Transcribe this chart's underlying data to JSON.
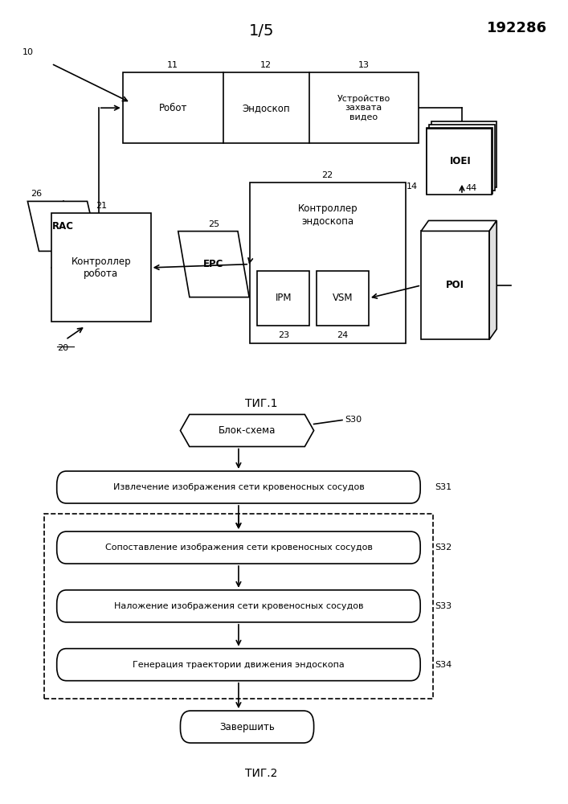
{
  "patent_number": "192286",
  "fig1_title": "1/5",
  "fig1_caption": "ΤИГ.1",
  "fig2_caption": "ΤИГ.2",
  "background_color": "#ffffff",
  "line_color": "#000000",
  "robot_label": "Робот",
  "endoscope_label": "Эндоскоп",
  "video_label": "Устройство\nзахвата\nвидео",
  "rac_label": "RAC",
  "robot_ctrl_label": "Контроллер\nробота",
  "epc_label": "EPC",
  "endo_ctrl_label": "Контроллер\nэндоскопа",
  "ipm_label": "IPM",
  "vsm_label": "VSM",
  "ioei_label": "IOEI",
  "poi_label": "POI",
  "start_label": "Блок-схема",
  "step1_label": "Извлечение изображения сети кровеносных сосудов",
  "step2_label": "Сопоставление изображения сети кровеносных сосудов",
  "step3_label": "Наложение изображения сети кровеносных сосудов",
  "step4_label": "Генерация траектории движения эндоскопа",
  "end_label": "Завершить"
}
